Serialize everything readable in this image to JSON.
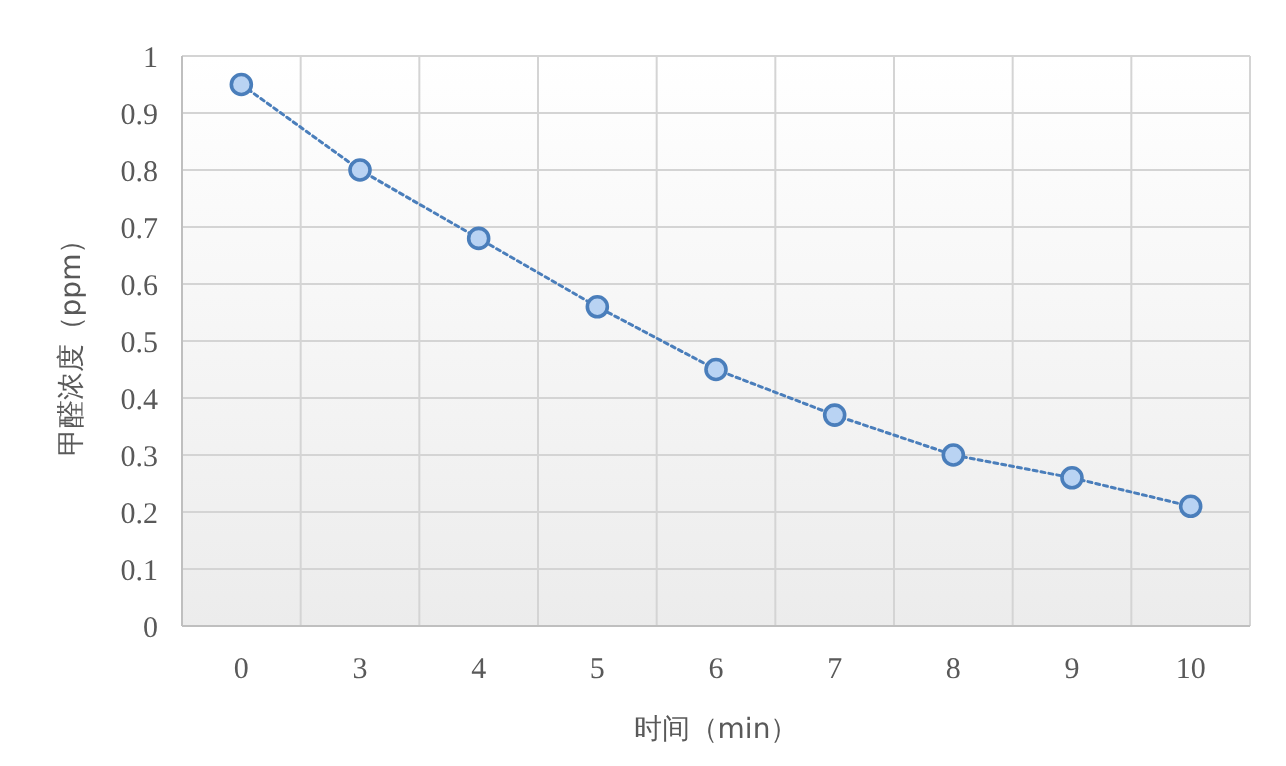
{
  "chart_data": {
    "type": "line",
    "xlabel": "时间（min）",
    "ylabel": "甲醛浓度（ppm）",
    "categories": [
      "0",
      "3",
      "4",
      "5",
      "6",
      "7",
      "8",
      "9",
      "10"
    ],
    "series": [
      {
        "color": "#4a7ebb",
        "values": [
          0.95,
          0.8,
          0.68,
          0.56,
          0.45,
          0.37,
          0.3,
          0.26,
          0.21
        ]
      }
    ],
    "ylim": [
      0,
      1
    ],
    "yticks": [
      0,
      0.1,
      0.2,
      0.3,
      0.4,
      0.5,
      0.6,
      0.7,
      0.8,
      0.9,
      1
    ],
    "grid": true,
    "marker": "circle",
    "line_style": "dotted"
  }
}
